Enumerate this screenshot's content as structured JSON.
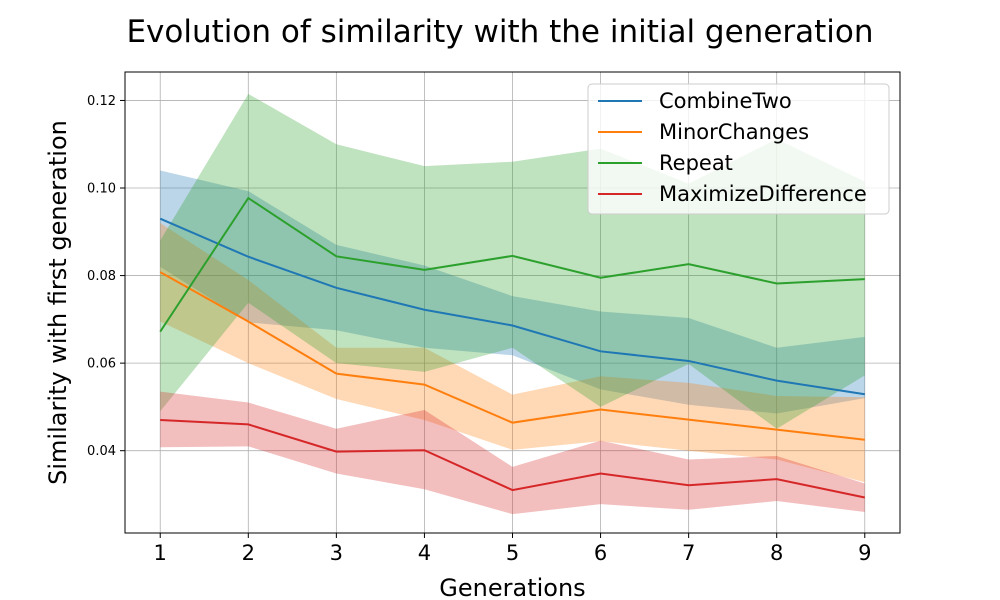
{
  "chart_data": {
    "type": "line",
    "title": "Evolution of similarity with the initial generation",
    "xlabel": "Generations",
    "ylabel": "Similarity with first generation",
    "x": [
      1,
      2,
      3,
      4,
      5,
      6,
      7,
      8,
      9
    ],
    "xlim": [
      0.6,
      9.4
    ],
    "ylim": [
      0.0212,
      0.1265
    ],
    "yticks": [
      "0.04",
      "0.06",
      "0.08",
      "0.10",
      "0.12"
    ],
    "ytick_values": [
      0.04,
      0.06,
      0.08,
      0.1,
      0.12
    ],
    "grid": true,
    "legend_position": "top-right",
    "series": [
      {
        "name": "CombineTwo",
        "color": "#1f77b4",
        "values": [
          0.093,
          0.0843,
          0.0772,
          0.0722,
          0.0686,
          0.0627,
          0.0605,
          0.056,
          0.0529
        ],
        "band_upper": [
          0.104,
          0.0993,
          0.087,
          0.0823,
          0.0753,
          0.0718,
          0.0703,
          0.0635,
          0.066
        ],
        "band_lower": [
          0.082,
          0.0693,
          0.0675,
          0.0635,
          0.0618,
          0.054,
          0.0505,
          0.0485,
          0.052
        ]
      },
      {
        "name": "MinorChanges",
        "color": "#ff7f0e",
        "values": [
          0.0808,
          0.0695,
          0.0576,
          0.0551,
          0.0464,
          0.0494,
          0.0471,
          0.0448,
          0.0425
        ],
        "band_upper": [
          0.092,
          0.079,
          0.0635,
          0.0635,
          0.0528,
          0.057,
          0.0555,
          0.0525,
          0.0522
        ],
        "band_lower": [
          0.0695,
          0.06,
          0.0518,
          0.047,
          0.0402,
          0.0422,
          0.04,
          0.038,
          0.0328
        ]
      },
      {
        "name": "Repeat",
        "color": "#2ca02c",
        "values": [
          0.0672,
          0.0977,
          0.0844,
          0.0813,
          0.0845,
          0.0795,
          0.0826,
          0.0782,
          0.0792
        ],
        "band_upper": [
          0.088,
          0.1215,
          0.11,
          0.105,
          0.106,
          0.109,
          0.101,
          0.1112,
          0.1015
        ],
        "band_lower": [
          0.049,
          0.0738,
          0.06,
          0.058,
          0.0635,
          0.05,
          0.0598,
          0.045,
          0.0572
        ]
      },
      {
        "name": "MaximizeDifference",
        "color": "#d62728",
        "values": [
          0.047,
          0.046,
          0.0398,
          0.0401,
          0.031,
          0.0348,
          0.0321,
          0.0335,
          0.0293
        ],
        "band_upper": [
          0.0535,
          0.051,
          0.045,
          0.0493,
          0.0363,
          0.0423,
          0.038,
          0.0388,
          0.0325
        ],
        "band_lower": [
          0.0408,
          0.041,
          0.0348,
          0.0312,
          0.0255,
          0.0278,
          0.0265,
          0.0285,
          0.026
        ]
      }
    ]
  }
}
